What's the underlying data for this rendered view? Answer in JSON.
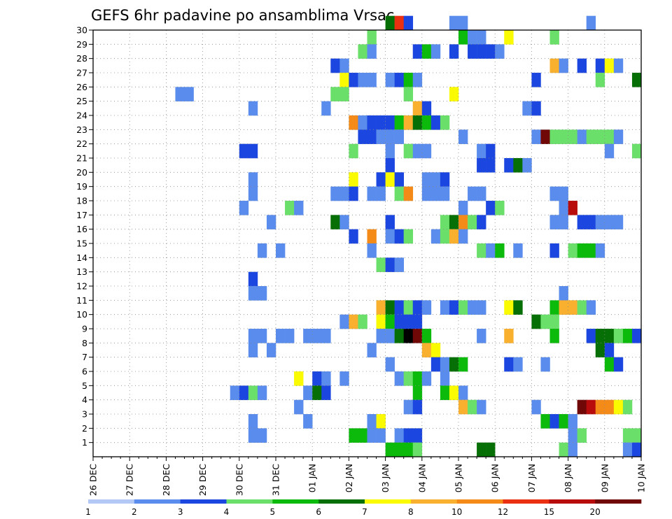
{
  "chart_data": {
    "type": "heatmap",
    "title": "GEFS 6hr padavine po ansamblima Vrsac",
    "xlabel": "",
    "ylabel": "",
    "x_tick_labels": [
      "26 DEC",
      "27 DEC",
      "28 DEC",
      "29 DEC",
      "30 DEC",
      "31 DEC",
      "01 JAN",
      "02 JAN",
      "03 JAN",
      "04 JAN",
      "05 JAN",
      "06 JAN",
      "07 JAN",
      "08 JAN",
      "09 JAN",
      "10 JAN"
    ],
    "y_tick_labels": [
      "1",
      "2",
      "3",
      "4",
      "5",
      "6",
      "7",
      "8",
      "9",
      "10",
      "11",
      "12",
      "13",
      "14",
      "15",
      "16",
      "17",
      "18",
      "19",
      "20",
      "21",
      "22",
      "23",
      "24",
      "25",
      "26",
      "27",
      "28",
      "29",
      "30"
    ],
    "x_range_steps": [
      0,
      60
    ],
    "y_range": [
      0,
      30
    ],
    "grid": true,
    "colorbar": {
      "labels": [
        "1",
        "2",
        "3",
        "4",
        "5",
        "6",
        "7",
        "8",
        "10",
        "12",
        "15",
        "20"
      ],
      "colors": [
        "#b4c8f5",
        "#5a8ced",
        "#1c46e0",
        "#6ae06a",
        "#0cba0c",
        "#067006",
        "#fafa00",
        "#f8b02e",
        "#f48a18",
        "#ea3010",
        "#b80c0c",
        "#700808"
      ]
    },
    "cells": [
      [
        32,
        30,
        5
      ],
      [
        33,
        30,
        9
      ],
      [
        34,
        30,
        2
      ],
      [
        39,
        30,
        1
      ],
      [
        40,
        30,
        1
      ],
      [
        54,
        30,
        1
      ],
      [
        30,
        29,
        3
      ],
      [
        40,
        29,
        4
      ],
      [
        41,
        29,
        1
      ],
      [
        42,
        29,
        1
      ],
      [
        45,
        29,
        6
      ],
      [
        50,
        29,
        3
      ],
      [
        29,
        28,
        3
      ],
      [
        30,
        28,
        1
      ],
      [
        35,
        28,
        2
      ],
      [
        36,
        28,
        4
      ],
      [
        37,
        28,
        1
      ],
      [
        39,
        28,
        2
      ],
      [
        41,
        28,
        2
      ],
      [
        42,
        28,
        2
      ],
      [
        43,
        28,
        2
      ],
      [
        44,
        28,
        1
      ],
      [
        26,
        27,
        2
      ],
      [
        27,
        27,
        1
      ],
      [
        50,
        27,
        7
      ],
      [
        51,
        27,
        1
      ],
      [
        53,
        27,
        2
      ],
      [
        55,
        27,
        2
      ],
      [
        56,
        27,
        6
      ],
      [
        57,
        27,
        1
      ],
      [
        27,
        26,
        6
      ],
      [
        28,
        26,
        2
      ],
      [
        29,
        26,
        1
      ],
      [
        30,
        26,
        1
      ],
      [
        32,
        26,
        1
      ],
      [
        33,
        26,
        2
      ],
      [
        34,
        26,
        4
      ],
      [
        35,
        26,
        1
      ],
      [
        48,
        26,
        2
      ],
      [
        55,
        26,
        3
      ],
      [
        59,
        26,
        5
      ],
      [
        9,
        25,
        1
      ],
      [
        10,
        25,
        1
      ],
      [
        26,
        25,
        3
      ],
      [
        27,
        25,
        3
      ],
      [
        34,
        25,
        3
      ],
      [
        39,
        25,
        6
      ],
      [
        17,
        24,
        1
      ],
      [
        25,
        24,
        1
      ],
      [
        35,
        24,
        7
      ],
      [
        36,
        24,
        2
      ],
      [
        47,
        24,
        1
      ],
      [
        48,
        24,
        2
      ],
      [
        28,
        23,
        8
      ],
      [
        29,
        23,
        1
      ],
      [
        30,
        23,
        2
      ],
      [
        31,
        23,
        2
      ],
      [
        32,
        23,
        2
      ],
      [
        33,
        23,
        4
      ],
      [
        34,
        23,
        7
      ],
      [
        35,
        23,
        5
      ],
      [
        36,
        23,
        4
      ],
      [
        37,
        23,
        2
      ],
      [
        38,
        23,
        3
      ],
      [
        29,
        22,
        2
      ],
      [
        30,
        22,
        2
      ],
      [
        31,
        22,
        1
      ],
      [
        32,
        22,
        1
      ],
      [
        33,
        22,
        1
      ],
      [
        40,
        22,
        1
      ],
      [
        48,
        22,
        1
      ],
      [
        49,
        22,
        11
      ],
      [
        50,
        22,
        3
      ],
      [
        51,
        22,
        3
      ],
      [
        52,
        22,
        3
      ],
      [
        53,
        22,
        1
      ],
      [
        54,
        22,
        3
      ],
      [
        55,
        22,
        3
      ],
      [
        56,
        22,
        3
      ],
      [
        57,
        22,
        1
      ],
      [
        16,
        21,
        2
      ],
      [
        17,
        21,
        2
      ],
      [
        28,
        21,
        3
      ],
      [
        32,
        21,
        1
      ],
      [
        34,
        21,
        3
      ],
      [
        35,
        21,
        1
      ],
      [
        36,
        21,
        1
      ],
      [
        42,
        21,
        1
      ],
      [
        43,
        21,
        2
      ],
      [
        56,
        21,
        1
      ],
      [
        59,
        21,
        3
      ],
      [
        32,
        20,
        2
      ],
      [
        42,
        20,
        2
      ],
      [
        43,
        20,
        2
      ],
      [
        45,
        20,
        2
      ],
      [
        46,
        20,
        5
      ],
      [
        47,
        20,
        1
      ],
      [
        17,
        19,
        1
      ],
      [
        28,
        19,
        6
      ],
      [
        31,
        19,
        2
      ],
      [
        32,
        19,
        6
      ],
      [
        33,
        19,
        2
      ],
      [
        36,
        19,
        1
      ],
      [
        37,
        19,
        1
      ],
      [
        38,
        19,
        2
      ],
      [
        17,
        18,
        1
      ],
      [
        26,
        18,
        1
      ],
      [
        27,
        18,
        1
      ],
      [
        28,
        18,
        2
      ],
      [
        30,
        18,
        1
      ],
      [
        31,
        18,
        1
      ],
      [
        33,
        18,
        3
      ],
      [
        34,
        18,
        8
      ],
      [
        36,
        18,
        1
      ],
      [
        37,
        18,
        1
      ],
      [
        38,
        18,
        1
      ],
      [
        41,
        18,
        1
      ],
      [
        42,
        18,
        1
      ],
      [
        50,
        18,
        1
      ],
      [
        51,
        18,
        1
      ],
      [
        16,
        17,
        1
      ],
      [
        21,
        17,
        3
      ],
      [
        22,
        17,
        1
      ],
      [
        40,
        17,
        1
      ],
      [
        43,
        17,
        2
      ],
      [
        44,
        17,
        3
      ],
      [
        51,
        17,
        1
      ],
      [
        52,
        17,
        10
      ],
      [
        19,
        16,
        1
      ],
      [
        26,
        16,
        5
      ],
      [
        27,
        16,
        1
      ],
      [
        32,
        16,
        2
      ],
      [
        38,
        16,
        3
      ],
      [
        39,
        16,
        5
      ],
      [
        40,
        16,
        8
      ],
      [
        41,
        16,
        3
      ],
      [
        42,
        16,
        2
      ],
      [
        50,
        16,
        1
      ],
      [
        51,
        16,
        1
      ],
      [
        53,
        16,
        2
      ],
      [
        54,
        16,
        2
      ],
      [
        55,
        16,
        1
      ],
      [
        56,
        16,
        1
      ],
      [
        57,
        16,
        1
      ],
      [
        28,
        15,
        2
      ],
      [
        30,
        15,
        8
      ],
      [
        32,
        15,
        1
      ],
      [
        33,
        15,
        2
      ],
      [
        34,
        15,
        3
      ],
      [
        37,
        15,
        1
      ],
      [
        38,
        15,
        3
      ],
      [
        39,
        15,
        7
      ],
      [
        40,
        15,
        1
      ],
      [
        18,
        14,
        1
      ],
      [
        20,
        14,
        1
      ],
      [
        30,
        14,
        1
      ],
      [
        42,
        14,
        3
      ],
      [
        43,
        14,
        1
      ],
      [
        44,
        14,
        4
      ],
      [
        46,
        14,
        1
      ],
      [
        50,
        14,
        2
      ],
      [
        52,
        14,
        3
      ],
      [
        53,
        14,
        4
      ],
      [
        54,
        14,
        4
      ],
      [
        55,
        14,
        1
      ],
      [
        31,
        13,
        3
      ],
      [
        32,
        13,
        2
      ],
      [
        33,
        13,
        1
      ],
      [
        17,
        12,
        2
      ],
      [
        17,
        11,
        1
      ],
      [
        18,
        11,
        1
      ],
      [
        51,
        11,
        1
      ],
      [
        31,
        10,
        7
      ],
      [
        32,
        10,
        5
      ],
      [
        33,
        10,
        2
      ],
      [
        34,
        10,
        3
      ],
      [
        35,
        10,
        2
      ],
      [
        36,
        10,
        1
      ],
      [
        38,
        10,
        1
      ],
      [
        39,
        10,
        2
      ],
      [
        40,
        10,
        3
      ],
      [
        41,
        10,
        1
      ],
      [
        42,
        10,
        1
      ],
      [
        45,
        10,
        6
      ],
      [
        46,
        10,
        5
      ],
      [
        50,
        10,
        4
      ],
      [
        51,
        10,
        7
      ],
      [
        52,
        10,
        7
      ],
      [
        53,
        10,
        3
      ],
      [
        54,
        10,
        1
      ],
      [
        27,
        9,
        1
      ],
      [
        28,
        9,
        7
      ],
      [
        29,
        9,
        3
      ],
      [
        31,
        9,
        6
      ],
      [
        32,
        9,
        4
      ],
      [
        33,
        9,
        2
      ],
      [
        34,
        9,
        2
      ],
      [
        35,
        9,
        2
      ],
      [
        48,
        9,
        5
      ],
      [
        49,
        9,
        3
      ],
      [
        50,
        9,
        3
      ],
      [
        17,
        8,
        1
      ],
      [
        18,
        8,
        1
      ],
      [
        20,
        8,
        1
      ],
      [
        21,
        8,
        1
      ],
      [
        23,
        8,
        1
      ],
      [
        24,
        8,
        1
      ],
      [
        25,
        8,
        1
      ],
      [
        31,
        8,
        1
      ],
      [
        32,
        8,
        1
      ],
      [
        33,
        8,
        5
      ],
      [
        34,
        8,
        12
      ],
      [
        35,
        8,
        11
      ],
      [
        36,
        8,
        4
      ],
      [
        42,
        8,
        1
      ],
      [
        45,
        8,
        7
      ],
      [
        50,
        8,
        4
      ],
      [
        54,
        8,
        2
      ],
      [
        55,
        8,
        5
      ],
      [
        56,
        8,
        5
      ],
      [
        57,
        8,
        3
      ],
      [
        58,
        8,
        4
      ],
      [
        59,
        8,
        2
      ],
      [
        17,
        7,
        1
      ],
      [
        19,
        7,
        1
      ],
      [
        30,
        7,
        1
      ],
      [
        36,
        7,
        7
      ],
      [
        37,
        7,
        6
      ],
      [
        55,
        7,
        5
      ],
      [
        56,
        7,
        2
      ],
      [
        32,
        6,
        1
      ],
      [
        37,
        6,
        2
      ],
      [
        38,
        6,
        1
      ],
      [
        39,
        6,
        5
      ],
      [
        40,
        6,
        4
      ],
      [
        45,
        6,
        2
      ],
      [
        46,
        6,
        1
      ],
      [
        49,
        6,
        1
      ],
      [
        56,
        6,
        4
      ],
      [
        57,
        6,
        2
      ],
      [
        22,
        5,
        6
      ],
      [
        24,
        5,
        2
      ],
      [
        25,
        5,
        1
      ],
      [
        27,
        5,
        1
      ],
      [
        33,
        5,
        1
      ],
      [
        34,
        5,
        3
      ],
      [
        35,
        5,
        4
      ],
      [
        36,
        5,
        1
      ],
      [
        38,
        5,
        1
      ],
      [
        15,
        4,
        1
      ],
      [
        16,
        4,
        2
      ],
      [
        17,
        4,
        3
      ],
      [
        18,
        4,
        1
      ],
      [
        23,
        4,
        1
      ],
      [
        24,
        4,
        5
      ],
      [
        25,
        4,
        2
      ],
      [
        35,
        4,
        4
      ],
      [
        38,
        4,
        4
      ],
      [
        39,
        4,
        6
      ],
      [
        40,
        4,
        1
      ],
      [
        22,
        3,
        1
      ],
      [
        34,
        3,
        1
      ],
      [
        35,
        3,
        2
      ],
      [
        40,
        3,
        7
      ],
      [
        41,
        3,
        3
      ],
      [
        42,
        3,
        1
      ],
      [
        48,
        3,
        1
      ],
      [
        53,
        3,
        11
      ],
      [
        54,
        3,
        10
      ],
      [
        55,
        3,
        8
      ],
      [
        56,
        3,
        8
      ],
      [
        57,
        3,
        6
      ],
      [
        58,
        3,
        3
      ],
      [
        17,
        2,
        1
      ],
      [
        23,
        2,
        1
      ],
      [
        30,
        2,
        1
      ],
      [
        31,
        2,
        6
      ],
      [
        49,
        2,
        4
      ],
      [
        50,
        2,
        2
      ],
      [
        51,
        2,
        4
      ],
      [
        52,
        2,
        1
      ],
      [
        17,
        1,
        1
      ],
      [
        18,
        1,
        1
      ],
      [
        28,
        1,
        4
      ],
      [
        29,
        1,
        4
      ],
      [
        30,
        1,
        1
      ],
      [
        31,
        1,
        1
      ],
      [
        33,
        1,
        1
      ],
      [
        34,
        1,
        2
      ],
      [
        35,
        1,
        2
      ],
      [
        52,
        1,
        1
      ],
      [
        53,
        1,
        3
      ],
      [
        58,
        1,
        3
      ],
      [
        59,
        1,
        3
      ],
      [
        32,
        0,
        4
      ],
      [
        33,
        0,
        4
      ],
      [
        34,
        0,
        4
      ],
      [
        35,
        0,
        3
      ],
      [
        42,
        0,
        5
      ],
      [
        43,
        0,
        5
      ],
      [
        51,
        0,
        3
      ],
      [
        52,
        0,
        1
      ],
      [
        58,
        0,
        1
      ],
      [
        59,
        0,
        2
      ]
    ]
  }
}
